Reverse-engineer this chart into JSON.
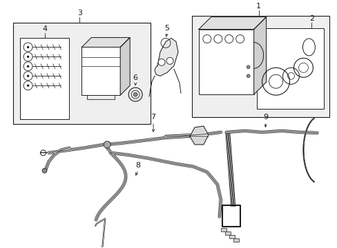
{
  "bg_color": "#ffffff",
  "line_color": "#1a1a1a",
  "box_fill": "#efefef",
  "lw_thin": 0.7,
  "lw_med": 0.9,
  "lw_thick": 1.1
}
